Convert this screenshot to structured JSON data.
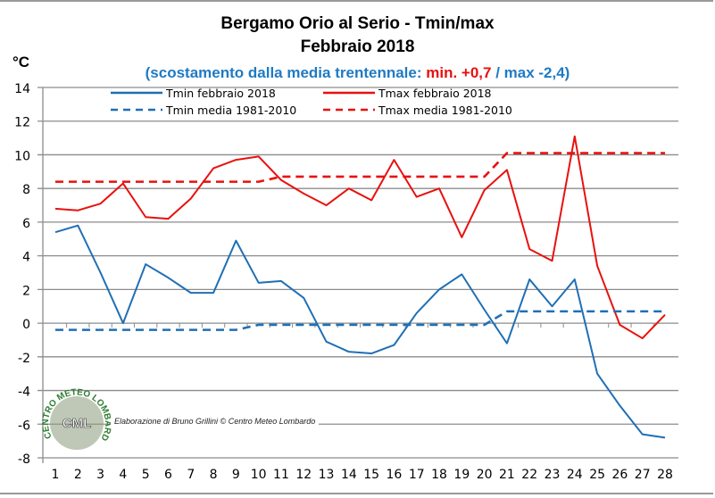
{
  "chart_data": {
    "type": "line",
    "title": "Bergamo Orio al Serio - Tmin/max",
    "subtitle": "Febbraio 2018",
    "annotation": {
      "prefix": "(scostamento dalla media trentennale: ",
      "highlight": "min. +0,7",
      "suffix": " / max -2,4)"
    },
    "ylabel": "°C",
    "xlabel": "",
    "ylim": [
      -8,
      14
    ],
    "yticks": [
      14,
      12,
      10,
      8,
      6,
      4,
      2,
      0,
      -2,
      -4,
      -6,
      -8
    ],
    "x": [
      1,
      2,
      3,
      4,
      5,
      6,
      7,
      8,
      9,
      10,
      11,
      12,
      13,
      14,
      15,
      16,
      17,
      18,
      19,
      20,
      21,
      22,
      23,
      24,
      25,
      26,
      27,
      28
    ],
    "grid": true,
    "legend_position": "top-center",
    "series": [
      {
        "name": "Tmin febbraio 2018",
        "color": "#1f6fb5",
        "style": "solid",
        "values": [
          5.4,
          5.8,
          3.0,
          0.0,
          3.5,
          2.7,
          1.8,
          1.8,
          4.9,
          2.4,
          2.5,
          1.5,
          -1.1,
          -1.7,
          -1.8,
          -1.3,
          0.6,
          2.0,
          2.9,
          0.8,
          -1.2,
          2.6,
          1.0,
          2.6,
          -3.0,
          -4.9,
          -6.6,
          -6.8
        ]
      },
      {
        "name": "Tmax febbraio 2018",
        "color": "#e8110f",
        "style": "solid",
        "values": [
          6.8,
          6.7,
          7.1,
          8.3,
          6.3,
          6.2,
          7.4,
          9.2,
          9.7,
          9.9,
          8.5,
          7.7,
          7.0,
          8.0,
          7.3,
          9.7,
          7.5,
          8.0,
          5.1,
          7.9,
          9.1,
          4.4,
          3.7,
          11.1,
          3.4,
          -0.1,
          -0.9,
          0.5
        ]
      },
      {
        "name": "Tmin media 1981-2010",
        "color": "#1f6fb5",
        "style": "dashed",
        "values": [
          -0.4,
          -0.4,
          -0.4,
          -0.4,
          -0.4,
          -0.4,
          -0.4,
          -0.4,
          -0.4,
          -0.1,
          -0.1,
          -0.1,
          -0.1,
          -0.1,
          -0.1,
          -0.1,
          -0.1,
          -0.1,
          -0.1,
          -0.1,
          0.7,
          0.7,
          0.7,
          0.7,
          0.7,
          0.7,
          0.7,
          0.7
        ]
      },
      {
        "name": "Tmax media 1981-2010",
        "color": "#e8110f",
        "style": "dashed",
        "values": [
          8.4,
          8.4,
          8.4,
          8.4,
          8.4,
          8.4,
          8.4,
          8.4,
          8.4,
          8.4,
          8.7,
          8.7,
          8.7,
          8.7,
          8.7,
          8.7,
          8.7,
          8.7,
          8.7,
          8.7,
          10.1,
          10.1,
          10.1,
          10.1,
          10.1,
          10.1,
          10.1,
          10.1
        ]
      }
    ]
  },
  "logo": {
    "ring_text": "CENTRO METEO LOMBARDO",
    "initials": "CML"
  },
  "credit": "Elaborazione di Bruno Grillini  © Centro Meteo Lombardo"
}
